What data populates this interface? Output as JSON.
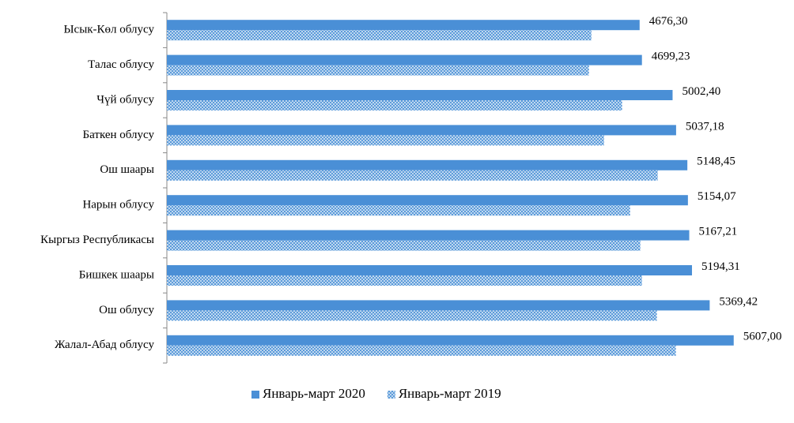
{
  "chart_data": {
    "type": "hbar",
    "categories": [
      "Ысык-Көл облусу",
      "Талас облусу",
      "Чүй облусу",
      "Баткен облусу",
      "Ош шаары",
      "Нарын облусу",
      "Кыргыз Республикасы",
      "Бишкек шаары",
      "Ош облусу",
      "Жалал-Абад облусу"
    ],
    "series": [
      {
        "name": "Январь-март 2020",
        "color": "#4a8fd6",
        "pattern": "solid",
        "values": [
          4676.3,
          4699.23,
          5002.4,
          5037.18,
          5148.45,
          5154.07,
          5167.21,
          5194.31,
          5369.42,
          5607.0
        ],
        "value_labels": [
          "4676,30",
          "4699,23",
          "5002,40",
          "5037,18",
          "5148,45",
          "5154,07",
          "5167,21",
          "5194,31",
          "5369,42",
          "5607,00"
        ]
      },
      {
        "name": "Январь-март 2019",
        "color": "#4a8fd6",
        "pattern": "crosshatch",
        "values": [
          4199,
          4175,
          4503,
          4324,
          4855,
          4582,
          4683,
          4699,
          4847,
          5035
        ]
      }
    ],
    "xlim": [
      0,
      6000
    ],
    "highlight_index": 6,
    "highlight_color": "#ff0000",
    "legend": "bottom"
  }
}
